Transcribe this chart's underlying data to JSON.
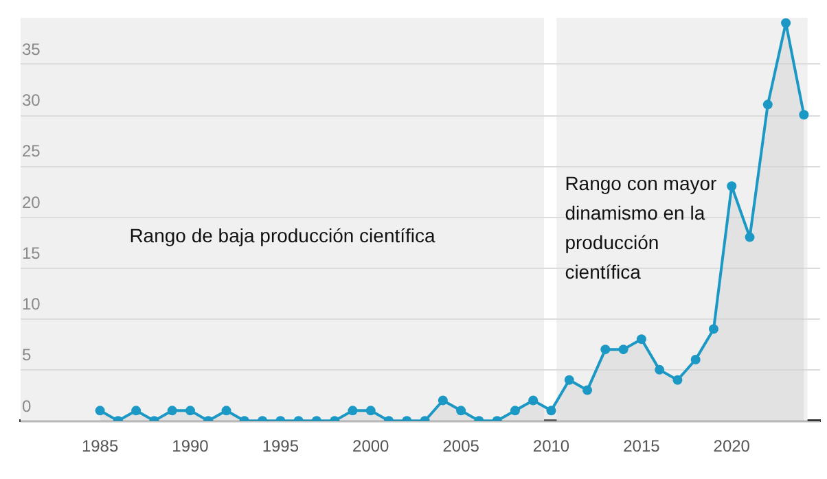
{
  "chart_data": {
    "type": "area",
    "x": [
      1985,
      1986,
      1987,
      1988,
      1989,
      1990,
      1991,
      1992,
      1993,
      1994,
      1995,
      1996,
      1997,
      1998,
      1999,
      2000,
      2001,
      2002,
      2003,
      2004,
      2005,
      2006,
      2007,
      2008,
      2009,
      2010,
      2011,
      2012,
      2013,
      2014,
      2015,
      2016,
      2017,
      2018,
      2019,
      2020,
      2021,
      2022,
      2023,
      2024
    ],
    "series": [
      {
        "color": "#1b98c4",
        "values": [
          1,
          0,
          1,
          0,
          1,
          1,
          0,
          1,
          0,
          0,
          0,
          0,
          0,
          0,
          1,
          1,
          0,
          0,
          0,
          2,
          1,
          0,
          0,
          1,
          2,
          1,
          4,
          3,
          7,
          7,
          8,
          5,
          4,
          6,
          9,
          23,
          18,
          31,
          39,
          30
        ]
      }
    ],
    "xlim": [
      1980.6,
      2024.9
    ],
    "ylim": [
      0,
      39.5
    ],
    "xticks": [
      1985,
      1990,
      1995,
      2000,
      2005,
      2010,
      2015,
      2020
    ],
    "yticks": [
      0,
      5,
      10,
      15,
      20,
      25,
      30,
      35
    ],
    "bands": [
      {
        "axis": "x",
        "from": 1980.6,
        "to": 2009.6,
        "label": "Rango de baja producción científica",
        "color": "#f0f0f0"
      },
      {
        "axis": "x",
        "from": 2010.3,
        "to": 2024.2,
        "label": "Rango con mayor dinamismo en la producción científica",
        "color": "#f0f0f0"
      }
    ],
    "grid": "y",
    "marker": "circle",
    "line_style": "solid",
    "legend": false
  }
}
